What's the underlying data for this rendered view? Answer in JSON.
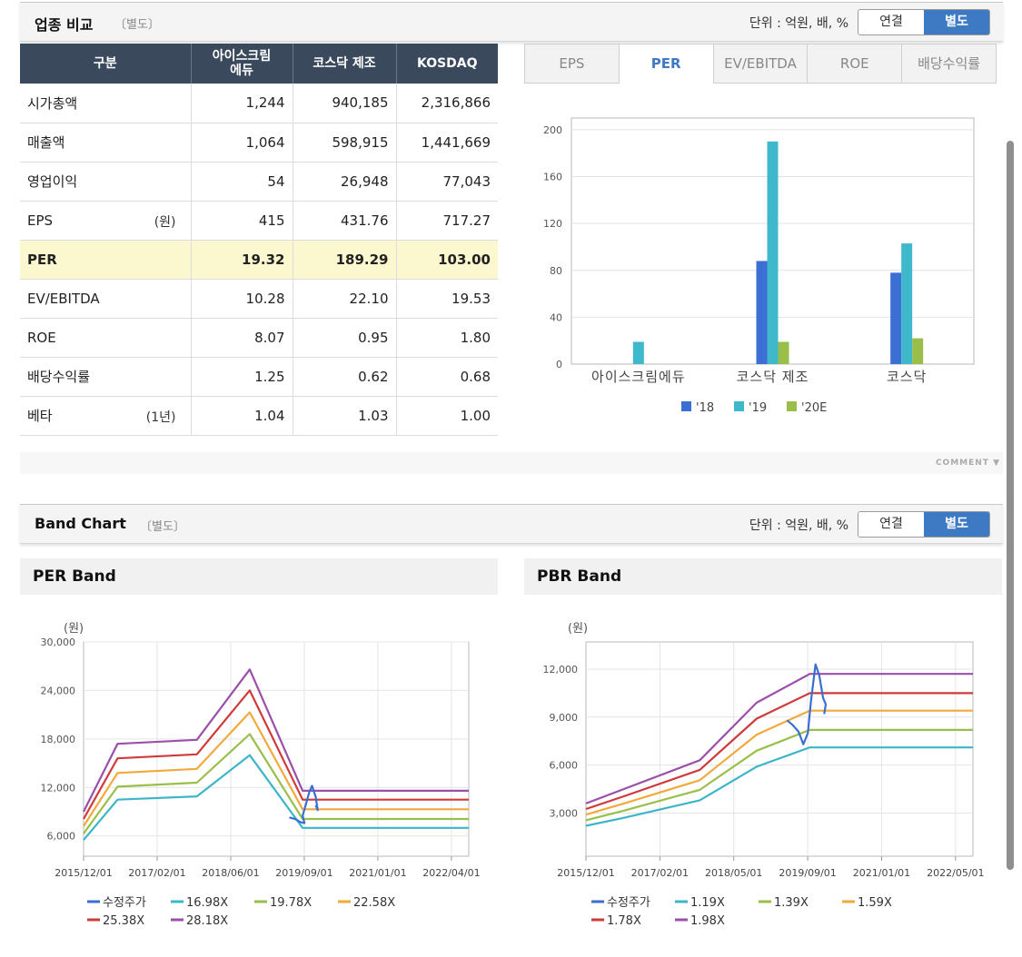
{
  "industry": {
    "title": "업종 비교",
    "subtitle": "〔별도〕",
    "unit": "단위 : 억원, 배, %",
    "toggle": {
      "consolidated": "연결",
      "separate": "별도"
    },
    "table": {
      "headers": [
        "구분",
        "아이스크림\n에듀",
        "코스닥 제조",
        "KOSDAQ"
      ],
      "rows": [
        {
          "label": "시가총액",
          "unit": "",
          "values": [
            "1,244",
            "940,185",
            "2,316,866"
          ]
        },
        {
          "label": "매출액",
          "unit": "",
          "values": [
            "1,064",
            "598,915",
            "1,441,669"
          ]
        },
        {
          "label": "영업이익",
          "unit": "",
          "values": [
            "54",
            "26,948",
            "77,043"
          ]
        },
        {
          "label": "EPS",
          "unit": "(원)",
          "values": [
            "415",
            "431.76",
            "717.27"
          ]
        },
        {
          "label": "PER",
          "unit": "",
          "values": [
            "19.32",
            "189.29",
            "103.00"
          ]
        },
        {
          "label": "EV/EBITDA",
          "unit": "",
          "values": [
            "10.28",
            "22.10",
            "19.53"
          ]
        },
        {
          "label": "ROE",
          "unit": "",
          "values": [
            "8.07",
            "0.95",
            "1.80"
          ]
        },
        {
          "label": "배당수익률",
          "unit": "",
          "values": [
            "1.25",
            "0.62",
            "0.68"
          ]
        },
        {
          "label": "베타",
          "unit": "(1년)",
          "values": [
            "1.04",
            "1.03",
            "1.00"
          ]
        }
      ]
    },
    "tabs": [
      "EPS",
      "PER",
      "EV/EBITDA",
      "ROE",
      "배당수익률"
    ],
    "active_tab": "PER",
    "comment": "COMMENT"
  },
  "band": {
    "title": "Band Chart",
    "subtitle": "〔별도〕",
    "unit": "단위 : 억원, 배, %",
    "toggle": {
      "consolidated": "연결",
      "separate": "별도"
    },
    "per_title": "PER Band",
    "pbr_title": "PBR Band"
  },
  "chart_data": [
    {
      "type": "bar",
      "categories": [
        "아이스크림에듀",
        "코스닥 제조",
        "코스닥"
      ],
      "series": [
        {
          "name": "'18",
          "color": "#3b6fd4",
          "values": [
            0,
            88,
            78
          ]
        },
        {
          "name": "'19",
          "color": "#3fb8cc",
          "values": [
            19,
            190,
            103
          ]
        },
        {
          "name": "'20E",
          "color": "#99bf4a",
          "values": [
            0,
            19,
            22
          ]
        }
      ],
      "yticks": [
        0,
        40,
        80,
        120,
        160,
        200
      ],
      "ylim": [
        0,
        210
      ]
    },
    {
      "type": "line",
      "yunit": "(원)",
      "xticks": [
        "2015/12/01",
        "2017/02/01",
        "2018/06/01",
        "2019/09/01",
        "2021/01/01",
        "2022/04/01"
      ],
      "yticks": [
        "6,000",
        "12,000",
        "18,000",
        "24,000",
        "30,000"
      ],
      "ylim": [
        3500,
        30000
      ],
      "xlim": [
        0,
        102
      ],
      "series": [
        {
          "name": "수정주가",
          "color": "#3a6fcf",
          "points": [
            [
              54.5,
              8300
            ],
            [
              56,
              8100
            ],
            [
              57.5,
              7700
            ],
            [
              58.5,
              7600
            ],
            [
              58,
              8500
            ],
            [
              58.8,
              9800
            ],
            [
              59.8,
              11500
            ],
            [
              60.5,
              12200
            ],
            [
              61.5,
              10800
            ],
            [
              62,
              9200
            ],
            [
              61.5,
              9800
            ]
          ]
        },
        {
          "name": "16.98X",
          "color": "#3db5c8",
          "points": [
            [
              0,
              5500
            ],
            [
              9,
              10500
            ],
            [
              30,
              10900
            ],
            [
              44,
              16000
            ],
            [
              58,
              7000
            ],
            [
              102,
              7000
            ]
          ]
        },
        {
          "name": "19.78X",
          "color": "#99bf4a",
          "points": [
            [
              0,
              6300
            ],
            [
              9,
              12100
            ],
            [
              30,
              12600
            ],
            [
              44,
              18600
            ],
            [
              58,
              8100
            ],
            [
              102,
              8100
            ]
          ]
        },
        {
          "name": "22.58X",
          "color": "#f2a93b",
          "points": [
            [
              0,
              7200
            ],
            [
              9,
              13800
            ],
            [
              30,
              14300
            ],
            [
              44,
              21300
            ],
            [
              58,
              9300
            ],
            [
              102,
              9300
            ]
          ]
        },
        {
          "name": "25.38X",
          "color": "#cf3a3a",
          "points": [
            [
              0,
              8100
            ],
            [
              9,
              15600
            ],
            [
              30,
              16100
            ],
            [
              44,
              24000
            ],
            [
              58,
              10500
            ],
            [
              102,
              10500
            ]
          ]
        },
        {
          "name": "28.18X",
          "color": "#9a4fa8",
          "points": [
            [
              0,
              9000
            ],
            [
              9,
              17400
            ],
            [
              30,
              17900
            ],
            [
              44,
              26600
            ],
            [
              58,
              11600
            ],
            [
              102,
              11600
            ]
          ]
        }
      ]
    },
    {
      "type": "line",
      "yunit": "(원)",
      "xticks": [
        "2015/12/01",
        "2017/02/01",
        "2018/05/01",
        "2019/09/01",
        "2021/01/01",
        "2022/05/01"
      ],
      "yticks": [
        "3,000",
        "6,000",
        "9,000",
        "12,000"
      ],
      "ylim": [
        300,
        13700
      ],
      "xlim": [
        0,
        102
      ],
      "series": [
        {
          "name": "수정주가",
          "color": "#3a6fcf",
          "points": [
            [
              53,
              8800
            ],
            [
              54.5,
              8500
            ],
            [
              56,
              8100
            ],
            [
              57.3,
              7300
            ],
            [
              58.5,
              8000
            ],
            [
              59.3,
              10000
            ],
            [
              60.5,
              12300
            ],
            [
              61.5,
              11600
            ],
            [
              62.5,
              10200
            ],
            [
              63.2,
              9800
            ],
            [
              62.8,
              9200
            ]
          ]
        },
        {
          "name": "1.19X",
          "color": "#3db5c8",
          "points": [
            [
              0,
              2200
            ],
            [
              10,
              2700
            ],
            [
              30,
              3800
            ],
            [
              45,
              5900
            ],
            [
              59,
              7100
            ],
            [
              102,
              7100
            ]
          ]
        },
        {
          "name": "1.39X",
          "color": "#99bf4a",
          "points": [
            [
              0,
              2550
            ],
            [
              10,
              3150
            ],
            [
              30,
              4450
            ],
            [
              45,
              6900
            ],
            [
              59,
              8200
            ],
            [
              102,
              8200
            ]
          ]
        },
        {
          "name": "1.59X",
          "color": "#f2a93b",
          "points": [
            [
              0,
              2900
            ],
            [
              10,
              3600
            ],
            [
              30,
              5050
            ],
            [
              45,
              7900
            ],
            [
              59,
              9400
            ],
            [
              102,
              9400
            ]
          ]
        },
        {
          "name": "1.78X",
          "color": "#cf3a3a",
          "points": [
            [
              0,
              3250
            ],
            [
              10,
              4050
            ],
            [
              30,
              5700
            ],
            [
              45,
              8900
            ],
            [
              59,
              10500
            ],
            [
              102,
              10500
            ]
          ]
        },
        {
          "name": "1.98X",
          "color": "#9a4fa8",
          "points": [
            [
              0,
              3600
            ],
            [
              10,
              4500
            ],
            [
              30,
              6300
            ],
            [
              45,
              9900
            ],
            [
              59,
              11700
            ],
            [
              102,
              11700
            ]
          ]
        }
      ]
    }
  ]
}
